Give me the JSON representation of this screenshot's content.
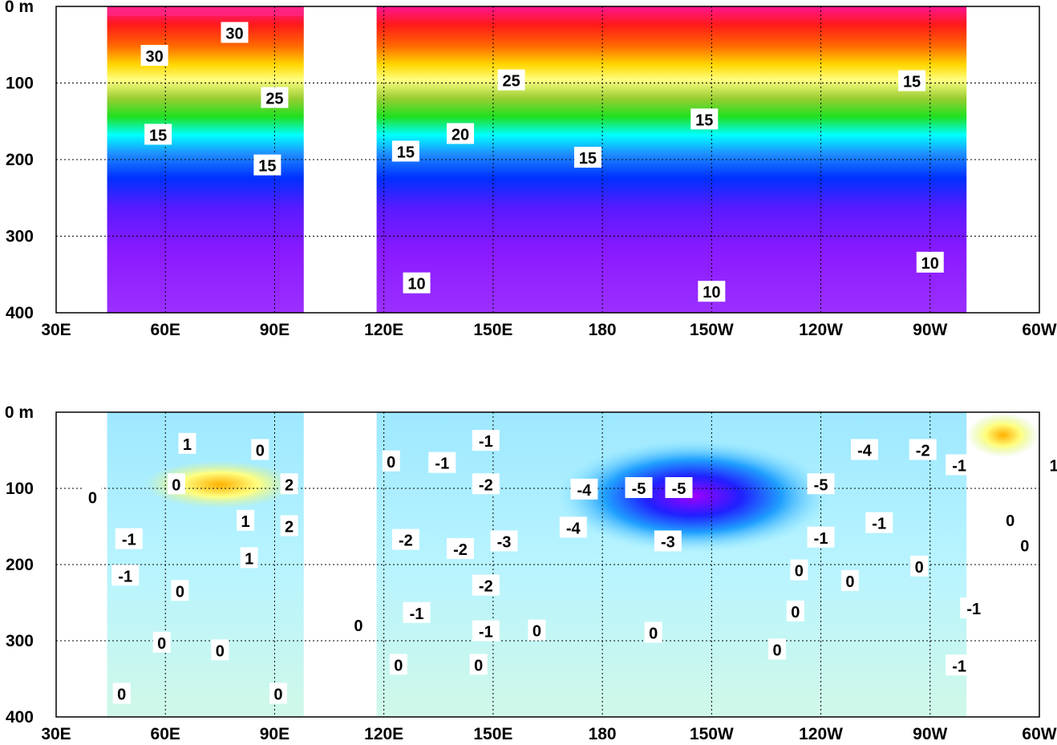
{
  "chart_data": [
    {
      "type": "contour",
      "xaxis": {
        "ticks": [
          "30E",
          "60E",
          "90E",
          "120E",
          "150E",
          "180",
          "150W",
          "120W",
          "90W",
          "60W"
        ],
        "range_lon_east": [
          30,
          300
        ]
      },
      "yaxis": {
        "ticks": [
          "0 m",
          "100",
          "200",
          "300",
          "400"
        ],
        "range": [
          0,
          400
        ],
        "inverted": true
      },
      "grid": true,
      "data_coverage": [
        [
          44,
          98
        ],
        [
          118,
          280
        ]
      ],
      "contour_labels": [
        {
          "text": "30",
          "lon": 79,
          "depth": 35
        },
        {
          "text": "30",
          "lon": 57,
          "depth": 65
        },
        {
          "text": "25",
          "lon": 90,
          "depth": 120
        },
        {
          "text": "15",
          "lon": 58,
          "depth": 168
        },
        {
          "text": "15",
          "lon": 88,
          "depth": 208
        },
        {
          "text": "25",
          "lon": 155,
          "depth": 97
        },
        {
          "text": "20",
          "lon": 141,
          "depth": 167
        },
        {
          "text": "15",
          "lon": 126,
          "depth": 190
        },
        {
          "text": "15",
          "lon": 176,
          "depth": 198
        },
        {
          "text": "15",
          "lon": 208,
          "depth": 148
        },
        {
          "text": "15",
          "lon": 265,
          "depth": 98
        },
        {
          "text": "10",
          "lon": 129,
          "depth": 362
        },
        {
          "text": "10",
          "lon": 210,
          "depth": 373
        },
        {
          "text": "10",
          "lon": 270,
          "depth": 335
        }
      ]
    },
    {
      "type": "contour",
      "xaxis": {
        "ticks": [
          "30E",
          "60E",
          "90E",
          "120E",
          "150E",
          "180",
          "150W",
          "120W",
          "90W",
          "60W"
        ],
        "range_lon_east": [
          30,
          300
        ]
      },
      "yaxis": {
        "ticks": [
          "0 m",
          "100",
          "200",
          "300",
          "400"
        ],
        "range": [
          0,
          400
        ],
        "inverted": true
      },
      "grid": true,
      "data_coverage": [
        [
          44,
          98
        ],
        [
          118,
          280
        ]
      ],
      "contour_labels": [
        {
          "text": "1",
          "lon": 66,
          "depth": 42
        },
        {
          "text": "0",
          "lon": 86,
          "depth": 50
        },
        {
          "text": "0",
          "lon": 63,
          "depth": 95
        },
        {
          "text": "2",
          "lon": 94,
          "depth": 95
        },
        {
          "text": "0",
          "lon": 40,
          "depth": 112
        },
        {
          "text": "1",
          "lon": 82,
          "depth": 143
        },
        {
          "text": "2",
          "lon": 94,
          "depth": 150
        },
        {
          "text": "-1",
          "lon": 50,
          "depth": 167
        },
        {
          "text": "1",
          "lon": 83,
          "depth": 192
        },
        {
          "text": "-1",
          "lon": 49,
          "depth": 215
        },
        {
          "text": "0",
          "lon": 64,
          "depth": 235
        },
        {
          "text": "0",
          "lon": 59,
          "depth": 303
        },
        {
          "text": "0",
          "lon": 75,
          "depth": 313
        },
        {
          "text": "0",
          "lon": 48,
          "depth": 370
        },
        {
          "text": "0",
          "lon": 91,
          "depth": 370
        },
        {
          "text": "-1",
          "lon": 148,
          "depth": 38
        },
        {
          "text": "0",
          "lon": 122,
          "depth": 65
        },
        {
          "text": "-1",
          "lon": 136,
          "depth": 67
        },
        {
          "text": "-2",
          "lon": 148,
          "depth": 95
        },
        {
          "text": "-4",
          "lon": 175,
          "depth": 102
        },
        {
          "text": "-5",
          "lon": 190,
          "depth": 100
        },
        {
          "text": "-5",
          "lon": 201,
          "depth": 100
        },
        {
          "text": "-5",
          "lon": 240,
          "depth": 95
        },
        {
          "text": "-4",
          "lon": 252,
          "depth": 50
        },
        {
          "text": "-2",
          "lon": 268,
          "depth": 50
        },
        {
          "text": "-1",
          "lon": 278,
          "depth": 70
        },
        {
          "text": "1",
          "lon": 304,
          "depth": 70
        },
        {
          "text": "-4",
          "lon": 172,
          "depth": 152
        },
        {
          "text": "-3",
          "lon": 198,
          "depth": 170
        },
        {
          "text": "-1",
          "lon": 240,
          "depth": 165
        },
        {
          "text": "-1",
          "lon": 256,
          "depth": 146
        },
        {
          "text": "0",
          "lon": 292,
          "depth": 142
        },
        {
          "text": "0",
          "lon": 296,
          "depth": 175
        },
        {
          "text": "-2",
          "lon": 126,
          "depth": 168
        },
        {
          "text": "-2",
          "lon": 141,
          "depth": 180
        },
        {
          "text": "-3",
          "lon": 153,
          "depth": 170
        },
        {
          "text": "-2",
          "lon": 148,
          "depth": 228
        },
        {
          "text": "0",
          "lon": 234,
          "depth": 208
        },
        {
          "text": "0",
          "lon": 248,
          "depth": 222
        },
        {
          "text": "0",
          "lon": 267,
          "depth": 203
        },
        {
          "text": "-1",
          "lon": 129,
          "depth": 264
        },
        {
          "text": "-1",
          "lon": 148,
          "depth": 288
        },
        {
          "text": "0",
          "lon": 162,
          "depth": 287
        },
        {
          "text": "0",
          "lon": 113,
          "depth": 280
        },
        {
          "text": "0",
          "lon": 124,
          "depth": 332
        },
        {
          "text": "0",
          "lon": 146,
          "depth": 332
        },
        {
          "text": "0",
          "lon": 194,
          "depth": 290
        },
        {
          "text": "0",
          "lon": 233,
          "depth": 262
        },
        {
          "text": "0",
          "lon": 228,
          "depth": 312
        },
        {
          "text": "-1",
          "lon": 282,
          "depth": 258
        },
        {
          "text": "-1",
          "lon": 278,
          "depth": 333
        }
      ]
    }
  ]
}
